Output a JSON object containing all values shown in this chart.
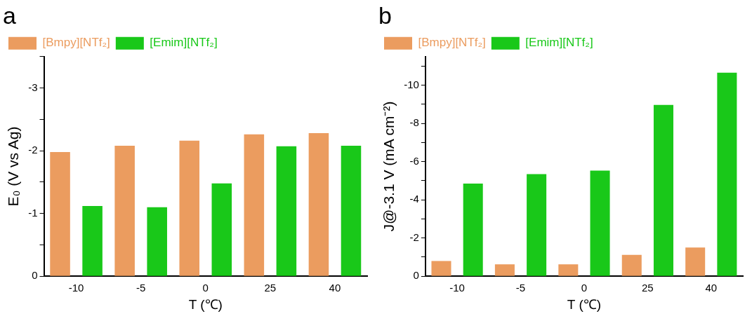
{
  "chart_data": [
    {
      "type": "bar",
      "title": "a",
      "xlabel": "T (℃)",
      "ylabel": "E₀ (V vs Ag)",
      "categories": [
        "-10",
        "-5",
        "0",
        "25",
        "40"
      ],
      "series": [
        {
          "name": "[Bmpy][NTf₂]",
          "color": "#eb9c5f",
          "values": [
            -1.98,
            -2.08,
            -2.16,
            -2.26,
            -2.28
          ]
        },
        {
          "name": "[Emim][NTf₂]",
          "color": "#19c819",
          "values": [
            -1.12,
            -1.1,
            -1.48,
            -2.07,
            -2.08
          ]
        }
      ],
      "ylim": [
        0,
        -3.5
      ],
      "yticks": [
        0,
        {
          "value": -0.5,
          "label": null
        },
        -1,
        {
          "value": -1.5,
          "label": null
        },
        -2,
        {
          "value": -2.5,
          "label": null
        },
        -3,
        {
          "value": -3.5,
          "label": null
        }
      ],
      "grid": false,
      "legend": "top left"
    },
    {
      "type": "bar",
      "title": "b",
      "xlabel": "T (℃)",
      "ylabel": "J@-3.1 V (mA cm⁻²)",
      "categories": [
        "-10",
        "-5",
        "0",
        "25",
        "40"
      ],
      "series": [
        {
          "name": "[Bmpy][NTf₂]",
          "color": "#eb9c5f",
          "values": [
            -0.8,
            -0.62,
            -0.62,
            -1.12,
            -1.5
          ]
        },
        {
          "name": "[Emim][NTf₂]",
          "color": "#19c819",
          "values": [
            -4.85,
            -5.35,
            -5.53,
            -8.97,
            -10.66
          ]
        }
      ],
      "ylim": [
        0,
        -11.5
      ],
      "yticks": [
        0,
        {
          "value": -1,
          "label": null
        },
        -2,
        {
          "value": -3,
          "label": null
        },
        -4,
        {
          "value": -5,
          "label": null
        },
        -6,
        {
          "value": -7,
          "label": null
        },
        -8,
        {
          "value": -9,
          "label": null
        },
        -10,
        {
          "value": -11,
          "label": null
        }
      ],
      "grid": false,
      "legend": "top left"
    }
  ]
}
